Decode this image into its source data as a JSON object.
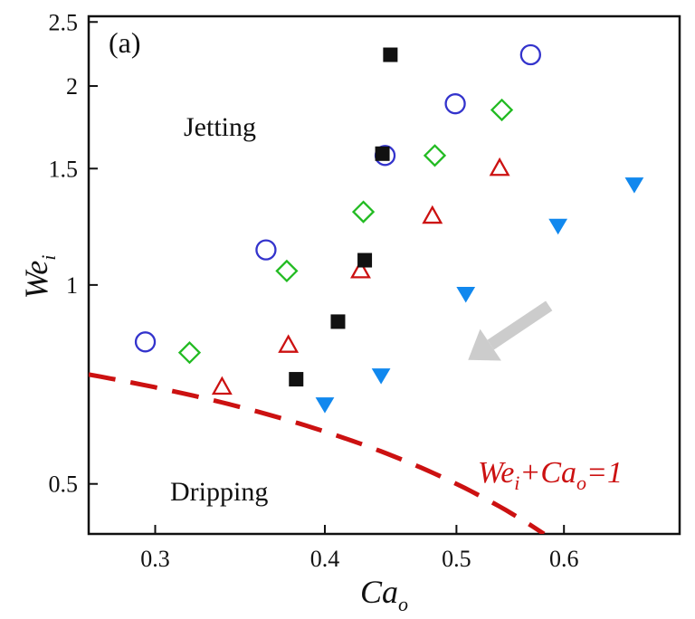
{
  "chart_data": {
    "type": "scatter",
    "x_scale": "log",
    "y_scale": "log",
    "xlim": [
      0.268,
      0.73
    ],
    "ylim": [
      0.42,
      2.55
    ],
    "xticks": [
      0.3,
      0.4,
      0.5,
      0.6
    ],
    "xtick_labels": [
      "0.3",
      "0.4",
      "0.5",
      "0.6"
    ],
    "yticks": [
      0.5,
      1,
      1.5,
      2,
      2.5
    ],
    "ytick_labels": [
      "0.5",
      "1",
      "1.5",
      "2",
      "2.5"
    ],
    "xlabel": {
      "main": "Ca",
      "sub": "o"
    },
    "ylabel": {
      "main": "We",
      "sub": "i"
    },
    "panel_label": "(a)",
    "grid": false,
    "region_labels": {
      "upper": "Jetting",
      "lower": "Dripping"
    },
    "boundary": {
      "style": "dashed",
      "color": "#cc1111",
      "label_parts": [
        {
          "t": "We",
          "sub": false
        },
        {
          "t": "i",
          "sub": true
        },
        {
          "t": "+Ca",
          "sub": false
        },
        {
          "t": "o",
          "sub": true
        },
        {
          "t": "=1",
          "sub": false
        }
      ],
      "x_range": [
        0.268,
        0.58
      ]
    },
    "arrow": {
      "color": "#cccccc",
      "from": [
        0.585,
        0.93
      ],
      "to": [
        0.51,
        0.77
      ]
    },
    "series": [
      {
        "marker": "circle",
        "color": "#3333cc",
        "filled": false,
        "points": [
          [
            0.295,
            0.82
          ],
          [
            0.362,
            1.13
          ],
          [
            0.443,
            1.57
          ],
          [
            0.499,
            1.88
          ],
          [
            0.567,
            2.23
          ]
        ]
      },
      {
        "marker": "diamond",
        "color": "#22bb22",
        "filled": false,
        "points": [
          [
            0.318,
            0.79
          ],
          [
            0.375,
            1.05
          ],
          [
            0.427,
            1.29
          ],
          [
            0.482,
            1.57
          ],
          [
            0.54,
            1.84
          ]
        ]
      },
      {
        "marker": "triangle-up",
        "color": "#cc1111",
        "filled": false,
        "points": [
          [
            0.336,
            0.7
          ],
          [
            0.376,
            0.81
          ],
          [
            0.425,
            1.05
          ],
          [
            0.48,
            1.27
          ],
          [
            0.538,
            1.5
          ]
        ]
      },
      {
        "marker": "square",
        "color": "#111111",
        "filled": true,
        "points": [
          [
            0.381,
            0.72
          ],
          [
            0.409,
            0.88
          ],
          [
            0.428,
            1.09
          ],
          [
            0.441,
            1.58
          ],
          [
            0.447,
            2.23
          ]
        ]
      },
      {
        "marker": "triangle-down",
        "color": "#1188ee",
        "filled": true,
        "points": [
          [
            0.4,
            0.66
          ],
          [
            0.44,
            0.73
          ],
          [
            0.508,
            0.97
          ],
          [
            0.594,
            1.23
          ],
          [
            0.676,
            1.42
          ]
        ]
      }
    ]
  }
}
